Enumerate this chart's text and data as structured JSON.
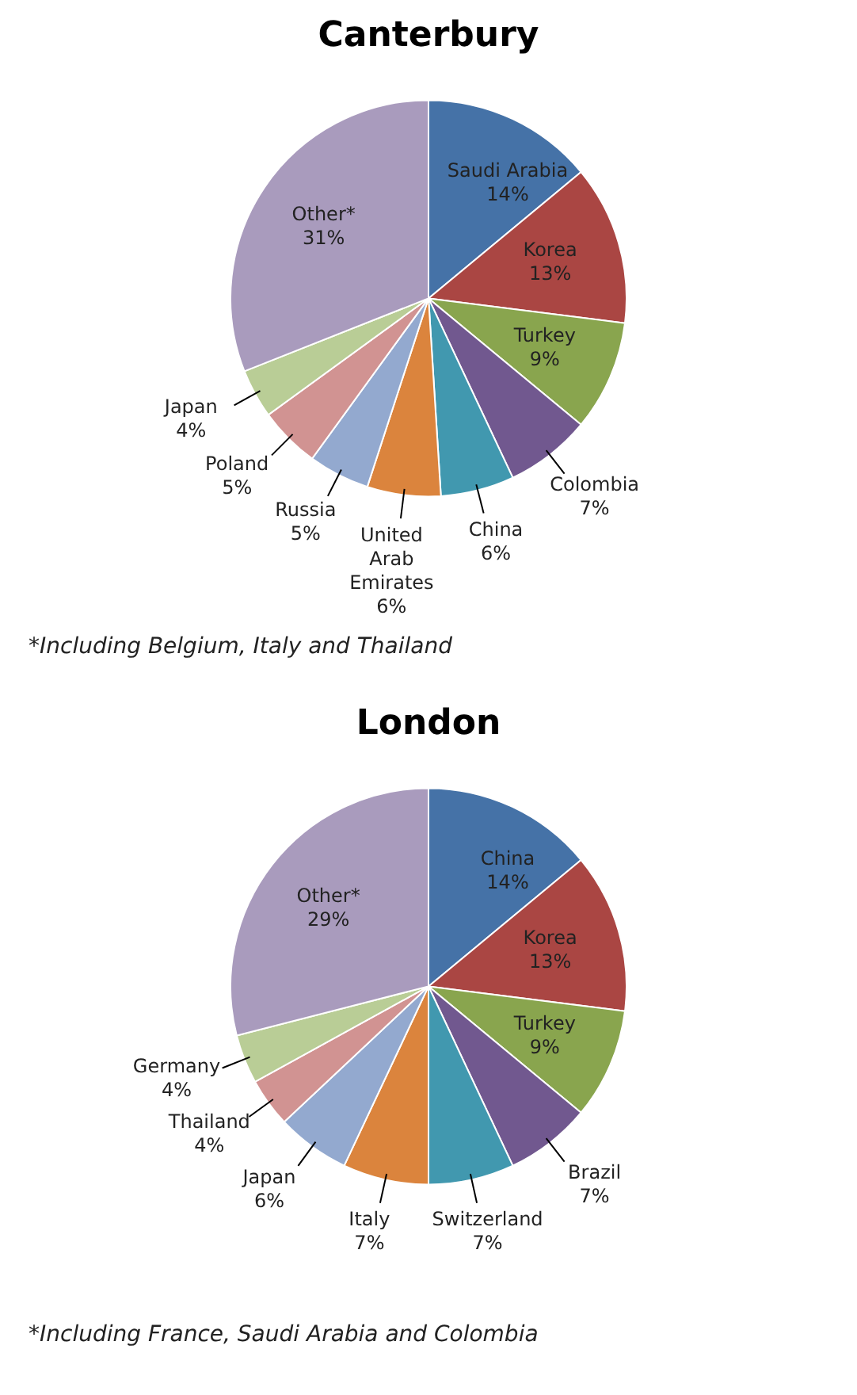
{
  "chart_data": [
    {
      "type": "pie",
      "title": "Canterbury",
      "categories": [
        "Saudi Arabia",
        "Korea",
        "Turkey",
        "Colombia",
        "China",
        "United Arab Emirates",
        "Russia",
        "Poland",
        "Japan",
        "Other*"
      ],
      "values": [
        14,
        13,
        9,
        7,
        6,
        6,
        5,
        5,
        4,
        31
      ],
      "value_labels": [
        "14%",
        "13%",
        "9%",
        "7%",
        "6%",
        "6%",
        "5%",
        "5%",
        "4%",
        "31%"
      ],
      "colors": [
        "#4572a7",
        "#aa4643",
        "#89a54e",
        "#71588f",
        "#4198af",
        "#db843d",
        "#93a9cf",
        "#d19392",
        "#b9cd96",
        "#a99bbd"
      ],
      "legend": false,
      "annotations": [
        "*Including Belgium, Italy and Thailand"
      ]
    },
    {
      "type": "pie",
      "title": "London",
      "categories": [
        "China",
        "Korea",
        "Turkey",
        "Brazil",
        "Switzerland",
        "Italy",
        "Japan",
        "Thailand",
        "Germany",
        "Other*"
      ],
      "values": [
        14,
        13,
        9,
        7,
        7,
        7,
        6,
        4,
        4,
        29
      ],
      "value_labels": [
        "14%",
        "13%",
        "9%",
        "7%",
        "7%",
        "7%",
        "6%",
        "4%",
        "4%",
        "29%"
      ],
      "colors": [
        "#4572a7",
        "#aa4643",
        "#89a54e",
        "#71588f",
        "#4198af",
        "#db843d",
        "#93a9cf",
        "#d19392",
        "#b9cd96",
        "#a99bbd"
      ],
      "legend": false,
      "annotations": [
        "*Including France, Saudi Arabia and Colombia"
      ]
    }
  ]
}
